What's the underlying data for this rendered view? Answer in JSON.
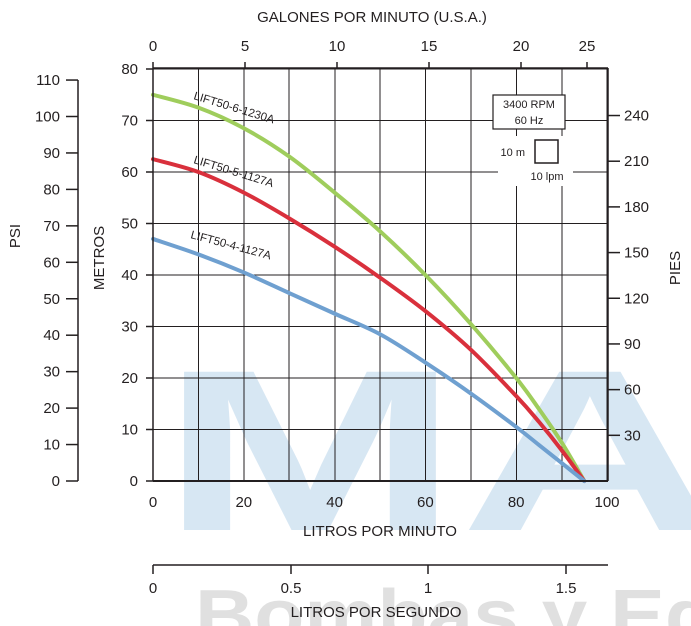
{
  "watermark": {
    "text_top": "MA",
    "text_bottom": "Bombas y Eq",
    "color": "#b8d4ea"
  },
  "chart_data": {
    "type": "line",
    "title": "",
    "top_axis": {
      "label": "GALONES POR MINUTO (U.S.A.)",
      "ticks": [
        "0",
        "5",
        "10",
        "15",
        "20",
        "25"
      ],
      "values": [
        0,
        5,
        10,
        15,
        20,
        25
      ]
    },
    "bottom_axis": {
      "label": "LITROS POR MINUTO",
      "ticks": [
        "0",
        "20",
        "40",
        "60",
        "80",
        "100"
      ],
      "values": [
        0,
        20,
        40,
        60,
        80,
        100
      ],
      "xlim": [
        0,
        100
      ]
    },
    "bottom_axis2": {
      "label": "LITROS POR SEGUNDO",
      "ticks": [
        "0",
        "0.5",
        "1",
        "1.5"
      ],
      "values": [
        0,
        0.5,
        1,
        1.5
      ]
    },
    "left_axis": {
      "label": "METROS",
      "ticks": [
        "0",
        "10",
        "20",
        "30",
        "40",
        "50",
        "60",
        "70",
        "80"
      ],
      "values": [
        0,
        10,
        20,
        30,
        40,
        50,
        60,
        70,
        80
      ],
      "ylim": [
        0,
        80
      ]
    },
    "psi_axis": {
      "label": "PSI",
      "ticks": [
        "0",
        "10",
        "20",
        "30",
        "40",
        "50",
        "60",
        "70",
        "80",
        "90",
        "100",
        "110"
      ],
      "values": [
        0,
        10,
        20,
        30,
        40,
        50,
        60,
        70,
        80,
        90,
        100,
        110
      ]
    },
    "right_axis": {
      "label": "PIES",
      "ticks": [
        "30",
        "60",
        "90",
        "120",
        "150",
        "180",
        "210",
        "240"
      ],
      "values": [
        30,
        60,
        90,
        120,
        150,
        180,
        210,
        240
      ]
    },
    "legend_box": {
      "line1": "3400 RPM",
      "line2": "60 Hz",
      "scale_y": "10 m",
      "scale_x": "10 lpm"
    },
    "grid": true,
    "series": [
      {
        "name": "LIFT50-6-1230A",
        "color": "#9fcd5c",
        "overlap_color": "#6ea03c",
        "x": [
          0,
          10,
          20,
          30,
          40,
          50,
          60,
          70,
          80,
          85,
          90,
          95
        ],
        "y": [
          75,
          72.5,
          68.5,
          63,
          56,
          48.5,
          40,
          30.5,
          20,
          14,
          7.5,
          0
        ]
      },
      {
        "name": "LIFT50-5-1127A",
        "color": "#d9303c",
        "x": [
          0,
          10,
          20,
          30,
          40,
          50,
          60,
          70,
          80,
          85,
          90,
          95
        ],
        "y": [
          62.5,
          60,
          56,
          51,
          45.5,
          39.5,
          33,
          25.5,
          16.5,
          11.5,
          6,
          0
        ]
      },
      {
        "name": "LIFT50-4-1127A",
        "color": "#6fa0d0",
        "x": [
          0,
          10,
          20,
          30,
          40,
          50,
          60,
          70,
          80,
          85,
          90,
          95
        ],
        "y": [
          47,
          44,
          40.5,
          36.5,
          32.5,
          28.5,
          23,
          17,
          10.5,
          7,
          3.5,
          0
        ]
      }
    ]
  }
}
